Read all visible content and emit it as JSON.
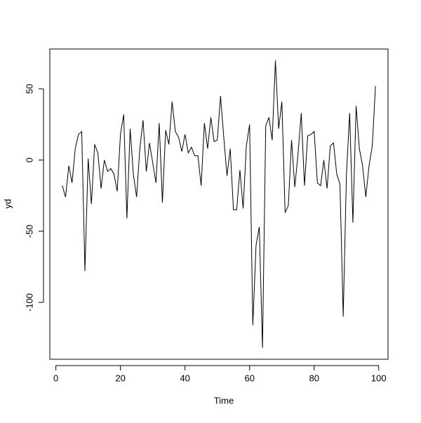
{
  "chart_data": {
    "type": "line",
    "xlabel": "Time",
    "ylabel": "yd",
    "x": [
      2,
      3,
      4,
      5,
      6,
      7,
      8,
      9,
      10,
      11,
      12,
      13,
      14,
      15,
      16,
      17,
      18,
      19,
      20,
      21,
      22,
      23,
      24,
      25,
      26,
      27,
      28,
      29,
      30,
      31,
      32,
      33,
      34,
      35,
      36,
      37,
      38,
      39,
      40,
      41,
      42,
      43,
      44,
      45,
      46,
      47,
      48,
      49,
      50,
      51,
      52,
      53,
      54,
      55,
      56,
      57,
      58,
      59,
      60,
      61,
      62,
      63,
      64,
      65,
      66,
      67,
      68,
      69,
      70,
      71,
      72,
      73,
      74,
      75,
      76,
      77,
      78,
      79,
      80,
      81,
      82,
      83,
      84,
      85,
      86,
      87,
      88,
      89,
      90,
      91,
      92,
      93,
      94,
      95,
      96,
      97,
      98,
      99
    ],
    "series": [
      {
        "color": "#000000",
        "values": [
          -18,
          -26,
          -4,
          -16,
          8,
          18,
          20,
          -78,
          1,
          -31,
          11,
          5,
          -20,
          0,
          -8,
          -6,
          -10,
          -22,
          18,
          32,
          -41,
          22,
          -10,
          -26,
          8,
          28,
          -8,
          12,
          -2,
          -16,
          26,
          -30,
          21,
          11,
          41,
          20,
          16,
          6,
          18,
          5,
          9,
          3,
          3,
          -18,
          26,
          8,
          30,
          13,
          14,
          45,
          16,
          -11,
          8,
          -35,
          -35,
          -7,
          -34,
          10,
          25,
          -116,
          -60,
          -47,
          -132,
          24,
          30,
          14,
          70,
          22,
          41,
          -37,
          -32,
          14,
          -19,
          4,
          33,
          -18,
          17,
          18,
          20,
          -16,
          -18,
          0,
          -20,
          10,
          12,
          -10,
          -17,
          -110,
          -10,
          33,
          -44,
          38,
          8,
          -4,
          -26,
          -4,
          10,
          52
        ]
      }
    ],
    "xlim": [
      -1.88,
      102.88
    ],
    "ylim": [
      -140,
      78
    ],
    "xticks": [
      0,
      20,
      40,
      60,
      80,
      100
    ],
    "yticks": [
      -100,
      -50,
      0,
      50
    ]
  }
}
